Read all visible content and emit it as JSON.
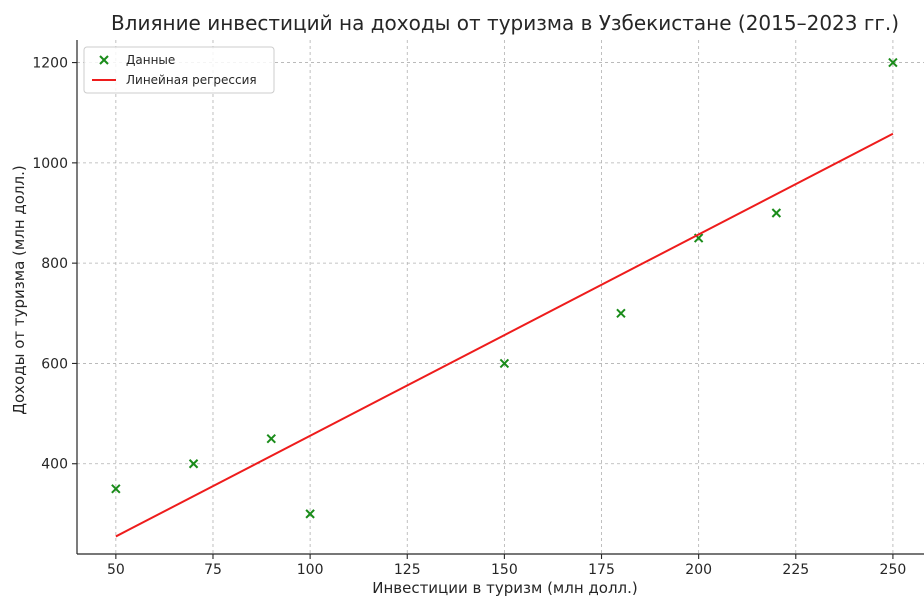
{
  "chart_data": {
    "type": "scatter",
    "title": "Влияние инвестиций на доходы от туризма в Узбекистане (2015–2023 гг.)",
    "xlabel": "Инвестиции в туризм (млн долл.)",
    "ylabel": "Доходы от туризма (млн долл.)",
    "xlim": [
      40,
      258
    ],
    "ylim": [
      220,
      1245
    ],
    "xticks": [
      50,
      75,
      100,
      125,
      150,
      175,
      200,
      225,
      250
    ],
    "yticks": [
      400,
      600,
      800,
      1000,
      1200
    ],
    "grid": true,
    "legend_position": "top-left",
    "series": [
      {
        "name": "Данные",
        "kind": "scatter",
        "marker": "x",
        "color": "#1a8c1a",
        "x": [
          50,
          70,
          90,
          100,
          150,
          180,
          200,
          220,
          250
        ],
        "y": [
          350,
          400,
          450,
          300,
          600,
          700,
          850,
          900,
          1200
        ]
      },
      {
        "name": "Линейная регрессия",
        "kind": "line",
        "color": "#ee1c1c",
        "x": [
          50,
          250
        ],
        "y": [
          255,
          1058
        ]
      }
    ]
  }
}
